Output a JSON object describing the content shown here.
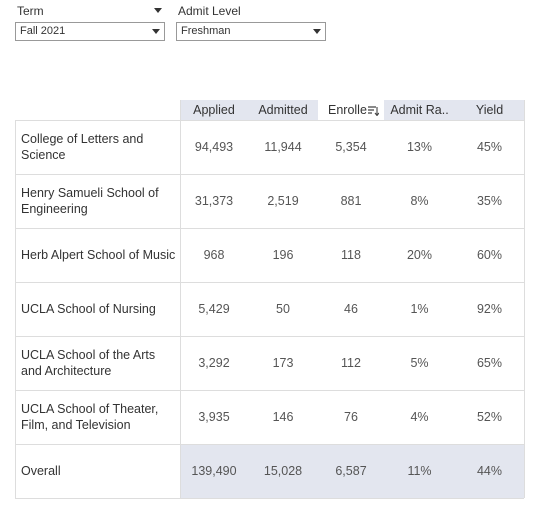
{
  "filters": [
    {
      "label": "Term",
      "value": "Fall 2021"
    },
    {
      "label": "Admit Level",
      "value": "Freshman"
    }
  ],
  "table": {
    "columns": [
      "Applied",
      "Admitted",
      "Enrolle",
      "Admit Ra..",
      "Yield"
    ],
    "rows": [
      {
        "label": "College of Letters and Science",
        "cells": [
          "94,493",
          "11,944",
          "5,354",
          "13%",
          "45%"
        ]
      },
      {
        "label": "Henry Samueli School of Engineering",
        "cells": [
          "31,373",
          "2,519",
          "881",
          "8%",
          "35%"
        ]
      },
      {
        "label": "Herb Alpert School of Music",
        "cells": [
          "968",
          "196",
          "118",
          "20%",
          "60%"
        ]
      },
      {
        "label": "UCLA School of Nursing",
        "cells": [
          "5,429",
          "50",
          "46",
          "1%",
          "92%"
        ]
      },
      {
        "label": "UCLA School of the Arts and Architecture",
        "cells": [
          "3,292",
          "173",
          "112",
          "5%",
          "65%"
        ]
      },
      {
        "label": "UCLA School of Theater, Film, and Television",
        "cells": [
          "3,935",
          "146",
          "76",
          "4%",
          "52%"
        ]
      }
    ],
    "total": {
      "label": "Overall",
      "cells": [
        "139,490",
        "15,028",
        "6,587",
        "11%",
        "44%"
      ]
    }
  }
}
